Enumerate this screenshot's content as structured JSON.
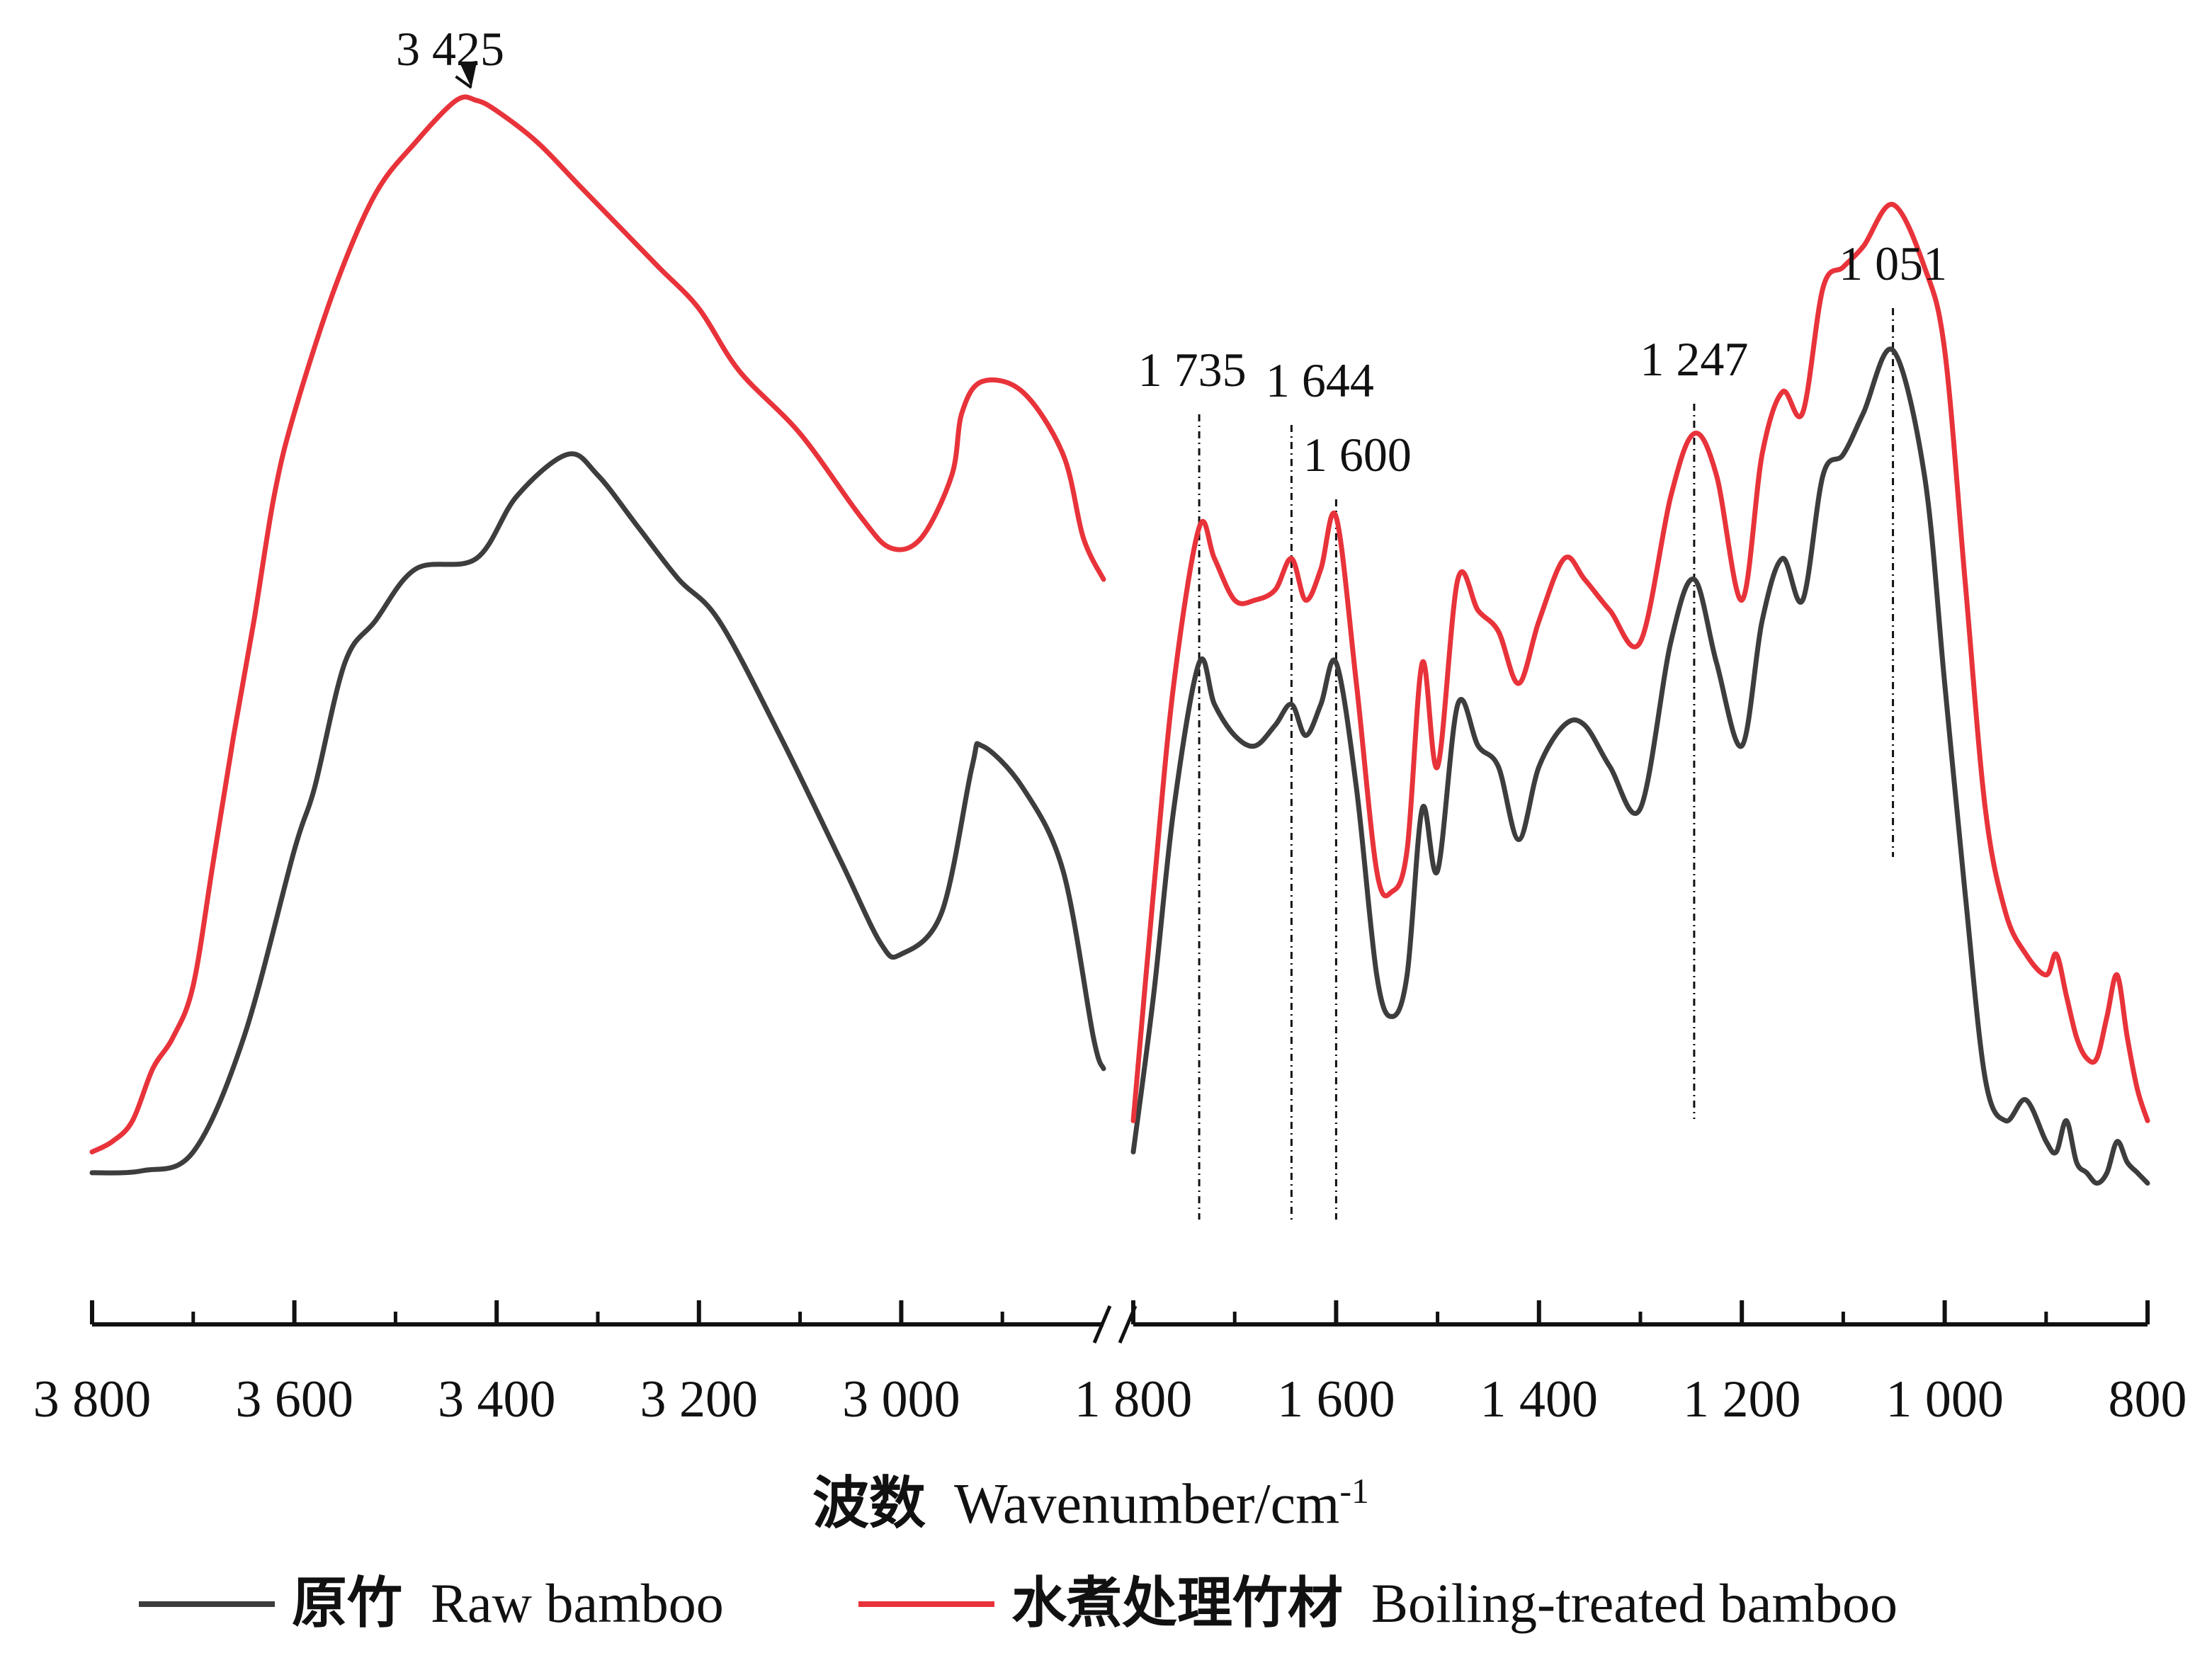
{
  "chart_data": {
    "type": "line",
    "xlabel": "波数 Wavenumber/cm-1",
    "xlabel_parts": {
      "zh": "波数",
      "en": "Wavenumber/cm",
      "sup": "-1"
    },
    "ylabel": "",
    "y_axis_shown": false,
    "x_axis": {
      "reversed": true,
      "broken": true,
      "segments": [
        {
          "xlim": [
            3800,
            2800
          ],
          "ticks": [
            3800,
            3600,
            3400,
            3200,
            3000
          ],
          "tick_labels": [
            "3 800",
            "3 600",
            "3 400",
            "3 200",
            "3 000"
          ]
        },
        {
          "xlim": [
            1800,
            800
          ],
          "ticks": [
            1800,
            1600,
            1400,
            1200,
            1000,
            800
          ],
          "tick_labels": [
            "1 800",
            "1 600",
            "1 400",
            "1 200",
            "1 000",
            "800"
          ]
        }
      ]
    },
    "ylim": [
      0,
      1
    ],
    "grid": false,
    "legend_position": "bottom",
    "series": [
      {
        "name": "原竹 Raw bamboo",
        "name_zh": "原竹",
        "name_en": "Raw bamboo",
        "color": "#3d3d3d",
        "segments": [
          {
            "x": [
              3800,
              3750,
              3700,
              3650,
              3600,
              3580,
              3550,
              3520,
              3480,
              3420,
              3380,
              3330,
              3300,
              3260,
              3220,
              3180,
              3120,
              3060,
              3020,
              3000,
              2960,
              2930,
              2920,
              2880,
              2840,
              2810,
              2800
            ],
            "y": [
              0.03,
              0.032,
              0.05,
              0.16,
              0.34,
              0.4,
              0.52,
              0.56,
              0.61,
              0.62,
              0.68,
              0.72,
              0.7,
              0.65,
              0.6,
              0.56,
              0.45,
              0.33,
              0.25,
              0.24,
              0.28,
              0.42,
              0.44,
              0.4,
              0.32,
              0.16,
              0.13
            ]
          },
          {
            "x": [
              1800,
              1780,
              1760,
              1735,
              1720,
              1700,
              1680,
              1660,
              1644,
              1630,
              1615,
              1600,
              1580,
              1560,
              1545,
              1530,
              1515,
              1500,
              1480,
              1460,
              1440,
              1420,
              1400,
              1375,
              1355,
              1330,
              1300,
              1270,
              1247,
              1225,
              1200,
              1180,
              1160,
              1140,
              1120,
              1100,
              1080,
              1051,
              1020,
              1000,
              980,
              960,
              940,
              920,
              900,
              890,
              880,
              870,
              860,
              850,
              840,
              830,
              820,
              810,
              800
            ],
            "y": [
              0.05,
              0.2,
              0.38,
              0.52,
              0.48,
              0.45,
              0.44,
              0.46,
              0.48,
              0.45,
              0.48,
              0.52,
              0.4,
              0.22,
              0.18,
              0.22,
              0.38,
              0.32,
              0.48,
              0.44,
              0.42,
              0.35,
              0.42,
              0.46,
              0.46,
              0.42,
              0.38,
              0.54,
              0.6,
              0.52,
              0.44,
              0.56,
              0.62,
              0.58,
              0.7,
              0.72,
              0.76,
              0.82,
              0.7,
              0.5,
              0.3,
              0.12,
              0.08,
              0.1,
              0.06,
              0.05,
              0.08,
              0.04,
              0.03,
              0.02,
              0.03,
              0.06,
              0.04,
              0.03,
              0.02
            ]
          }
        ]
      },
      {
        "name": "水煮处理竹材 Boiling-treated bamboo",
        "name_zh": "水煮处理竹材",
        "name_en": "Boiling-treated bamboo",
        "color": "#e8333a",
        "segments": [
          {
            "x": [
              3800,
              3780,
              3760,
              3740,
              3720,
              3700,
              3680,
              3660,
              3640,
              3620,
              3600,
              3560,
              3520,
              3480,
              3440,
              3420,
              3400,
              3360,
              3320,
              3280,
              3240,
              3200,
              3160,
              3100,
              3040,
              3010,
              2980,
              2950,
              2940,
              2920,
              2880,
              2840,
              2820,
              2800
            ],
            "y": [
              0.05,
              0.06,
              0.08,
              0.13,
              0.16,
              0.21,
              0.33,
              0.45,
              0.56,
              0.68,
              0.76,
              0.88,
              0.97,
              1.02,
              1.06,
              1.06,
              1.05,
              1.02,
              0.98,
              0.94,
              0.9,
              0.86,
              0.8,
              0.74,
              0.66,
              0.63,
              0.64,
              0.7,
              0.76,
              0.79,
              0.78,
              0.72,
              0.64,
              0.6
            ]
          },
          {
            "x": [
              1800,
              1780,
              1760,
              1735,
              1720,
              1700,
              1680,
              1660,
              1644,
              1630,
              1615,
              1600,
              1580,
              1560,
              1545,
              1530,
              1515,
              1500,
              1480,
              1460,
              1440,
              1420,
              1400,
              1375,
              1355,
              1330,
              1300,
              1270,
              1247,
              1225,
              1200,
              1180,
              1160,
              1140,
              1120,
              1100,
              1080,
              1051,
              1020,
              1000,
              980,
              960,
              940,
              920,
              900,
              890,
              880,
              870,
              860,
              850,
              840,
              830,
              820,
              810,
              800
            ],
            "y": [
              0.08,
              0.3,
              0.5,
              0.65,
              0.62,
              0.58,
              0.58,
              0.59,
              0.62,
              0.58,
              0.61,
              0.66,
              0.5,
              0.32,
              0.3,
              0.34,
              0.52,
              0.42,
              0.6,
              0.57,
              0.55,
              0.5,
              0.56,
              0.62,
              0.6,
              0.57,
              0.54,
              0.68,
              0.74,
              0.7,
              0.58,
              0.72,
              0.78,
              0.76,
              0.88,
              0.9,
              0.92,
              0.96,
              0.9,
              0.82,
              0.6,
              0.38,
              0.28,
              0.24,
              0.22,
              0.24,
              0.2,
              0.16,
              0.14,
              0.14,
              0.18,
              0.22,
              0.16,
              0.11,
              0.08
            ]
          }
        ]
      }
    ],
    "annotations": [
      {
        "label": "3 425",
        "x": 3425,
        "arrow": true
      },
      {
        "label": "1 735",
        "x": 1735,
        "guide_line": true
      },
      {
        "label": "1 644",
        "x": 1644,
        "guide_line": true
      },
      {
        "label": "1 600",
        "x": 1600,
        "guide_line": true
      },
      {
        "label": "1 247",
        "x": 1247,
        "guide_line": true
      },
      {
        "label": "1 051",
        "x": 1051,
        "guide_line": true
      }
    ]
  }
}
